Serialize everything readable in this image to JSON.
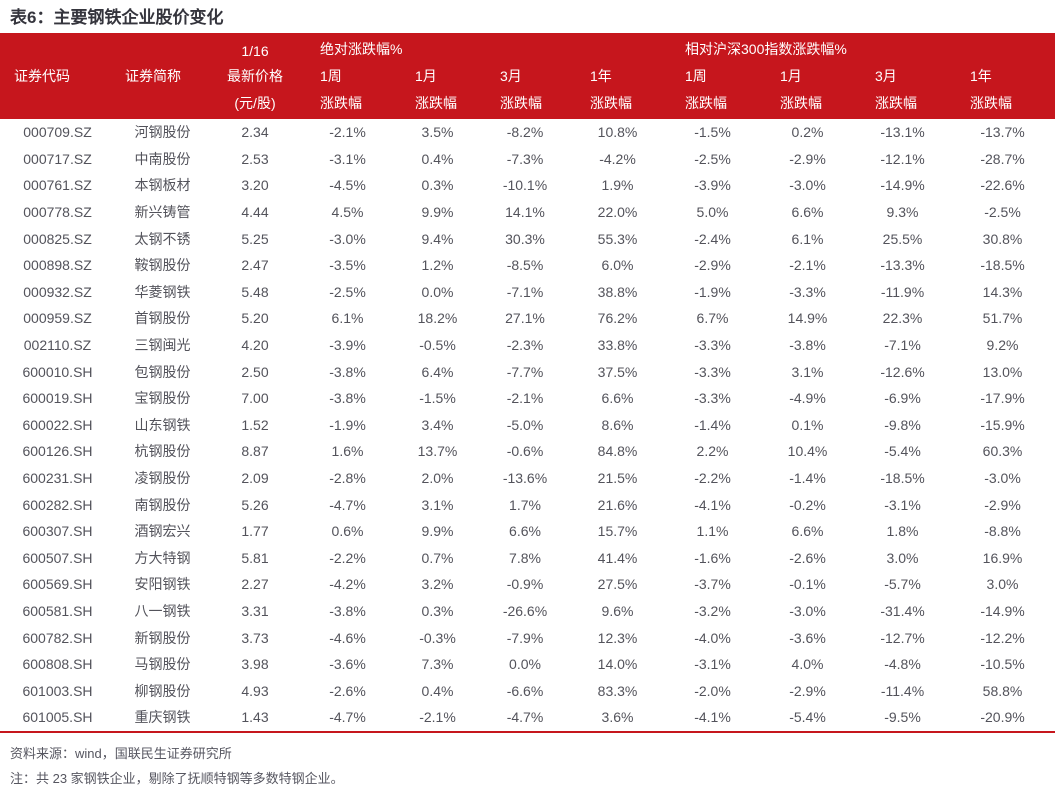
{
  "title": "表6：主要钢铁企业股价变化",
  "colors": {
    "header_red": "#C6161D",
    "title_text": "#35353d",
    "body_text": "#53535b"
  },
  "header": {
    "code": "证券代码",
    "name": "证券简称",
    "date": "1/16",
    "price": "最新价格",
    "price_unit": "(元/股)",
    "abs_group": "绝对涨跌幅%",
    "rel_group": "相对沪深300指数涨跌幅%",
    "periods": [
      "1周",
      "1月",
      "3月",
      "1年"
    ],
    "change": "涨跌幅"
  },
  "table": {
    "rows": [
      [
        "000709.SZ",
        "河钢股份",
        "2.34",
        "-2.1%",
        "3.5%",
        "-8.2%",
        "10.8%",
        "-1.5%",
        "0.2%",
        "-13.1%",
        "-13.7%"
      ],
      [
        "000717.SZ",
        "中南股份",
        "2.53",
        "-3.1%",
        "0.4%",
        "-7.3%",
        "-4.2%",
        "-2.5%",
        "-2.9%",
        "-12.1%",
        "-28.7%"
      ],
      [
        "000761.SZ",
        "本钢板材",
        "3.20",
        "-4.5%",
        "0.3%",
        "-10.1%",
        "1.9%",
        "-3.9%",
        "-3.0%",
        "-14.9%",
        "-22.6%"
      ],
      [
        "000778.SZ",
        "新兴铸管",
        "4.44",
        "4.5%",
        "9.9%",
        "14.1%",
        "22.0%",
        "5.0%",
        "6.6%",
        "9.3%",
        "-2.5%"
      ],
      [
        "000825.SZ",
        "太钢不锈",
        "5.25",
        "-3.0%",
        "9.4%",
        "30.3%",
        "55.3%",
        "-2.4%",
        "6.1%",
        "25.5%",
        "30.8%"
      ],
      [
        "000898.SZ",
        "鞍钢股份",
        "2.47",
        "-3.5%",
        "1.2%",
        "-8.5%",
        "6.0%",
        "-2.9%",
        "-2.1%",
        "-13.3%",
        "-18.5%"
      ],
      [
        "000932.SZ",
        "华菱钢铁",
        "5.48",
        "-2.5%",
        "0.0%",
        "-7.1%",
        "38.8%",
        "-1.9%",
        "-3.3%",
        "-11.9%",
        "14.3%"
      ],
      [
        "000959.SZ",
        "首钢股份",
        "5.20",
        "6.1%",
        "18.2%",
        "27.1%",
        "76.2%",
        "6.7%",
        "14.9%",
        "22.3%",
        "51.7%"
      ],
      [
        "002110.SZ",
        "三钢闽光",
        "4.20",
        "-3.9%",
        "-0.5%",
        "-2.3%",
        "33.8%",
        "-3.3%",
        "-3.8%",
        "-7.1%",
        "9.2%"
      ],
      [
        "600010.SH",
        "包钢股份",
        "2.50",
        "-3.8%",
        "6.4%",
        "-7.7%",
        "37.5%",
        "-3.3%",
        "3.1%",
        "-12.6%",
        "13.0%"
      ],
      [
        "600019.SH",
        "宝钢股份",
        "7.00",
        "-3.8%",
        "-1.5%",
        "-2.1%",
        "6.6%",
        "-3.3%",
        "-4.9%",
        "-6.9%",
        "-17.9%"
      ],
      [
        "600022.SH",
        "山东钢铁",
        "1.52",
        "-1.9%",
        "3.4%",
        "-5.0%",
        "8.6%",
        "-1.4%",
        "0.1%",
        "-9.8%",
        "-15.9%"
      ],
      [
        "600126.SH",
        "杭钢股份",
        "8.87",
        "1.6%",
        "13.7%",
        "-0.6%",
        "84.8%",
        "2.2%",
        "10.4%",
        "-5.4%",
        "60.3%"
      ],
      [
        "600231.SH",
        "凌钢股份",
        "2.09",
        "-2.8%",
        "2.0%",
        "-13.6%",
        "21.5%",
        "-2.2%",
        "-1.4%",
        "-18.5%",
        "-3.0%"
      ],
      [
        "600282.SH",
        "南钢股份",
        "5.26",
        "-4.7%",
        "3.1%",
        "1.7%",
        "21.6%",
        "-4.1%",
        "-0.2%",
        "-3.1%",
        "-2.9%"
      ],
      [
        "600307.SH",
        "酒钢宏兴",
        "1.77",
        "0.6%",
        "9.9%",
        "6.6%",
        "15.7%",
        "1.1%",
        "6.6%",
        "1.8%",
        "-8.8%"
      ],
      [
        "600507.SH",
        "方大特钢",
        "5.81",
        "-2.2%",
        "0.7%",
        "7.8%",
        "41.4%",
        "-1.6%",
        "-2.6%",
        "3.0%",
        "16.9%"
      ],
      [
        "600569.SH",
        "安阳钢铁",
        "2.27",
        "-4.2%",
        "3.2%",
        "-0.9%",
        "27.5%",
        "-3.7%",
        "-0.1%",
        "-5.7%",
        "3.0%"
      ],
      [
        "600581.SH",
        "八一钢铁",
        "3.31",
        "-3.8%",
        "0.3%",
        "-26.6%",
        "9.6%",
        "-3.2%",
        "-3.0%",
        "-31.4%",
        "-14.9%"
      ],
      [
        "600782.SH",
        "新钢股份",
        "3.73",
        "-4.6%",
        "-0.3%",
        "-7.9%",
        "12.3%",
        "-4.0%",
        "-3.6%",
        "-12.7%",
        "-12.2%"
      ],
      [
        "600808.SH",
        "马钢股份",
        "3.98",
        "-3.6%",
        "7.3%",
        "0.0%",
        "14.0%",
        "-3.1%",
        "4.0%",
        "-4.8%",
        "-10.5%"
      ],
      [
        "601003.SH",
        "柳钢股份",
        "4.93",
        "-2.6%",
        "0.4%",
        "-6.6%",
        "83.3%",
        "-2.0%",
        "-2.9%",
        "-11.4%",
        "58.8%"
      ],
      [
        "601005.SH",
        "重庆钢铁",
        "1.43",
        "-4.7%",
        "-2.1%",
        "-4.7%",
        "3.6%",
        "-4.1%",
        "-5.4%",
        "-9.5%",
        "-20.9%"
      ]
    ]
  },
  "footer": {
    "source": "资料来源：wind，国联民生证券研究所",
    "note": "注：共 23 家钢铁企业，剔除了抚顺特钢等多数特钢企业。"
  }
}
